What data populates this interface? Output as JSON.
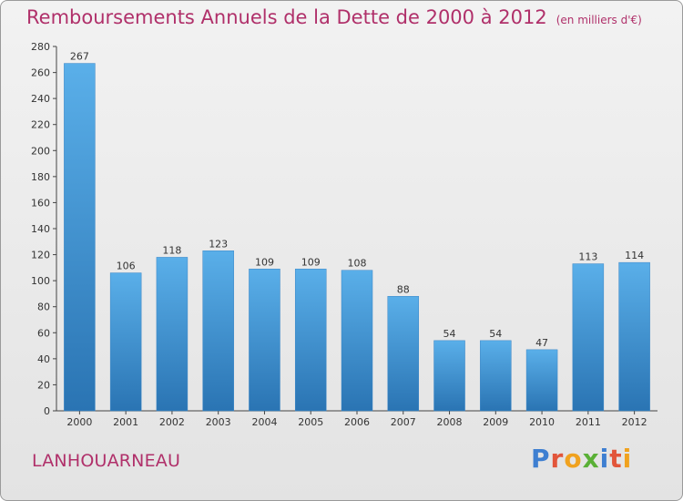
{
  "header": {
    "title": "Remboursements Annuels de la Dette de 2000 à 2012",
    "unit": "(en milliers d'€)"
  },
  "footer": {
    "town": "LANHOUARNEAU",
    "logo": "Proxiti"
  },
  "colors": {
    "title": "#b0306a",
    "bar_top": "#5aafe9",
    "bar_bottom": "#2a74b3",
    "logo_letters": [
      "#3e7fd1",
      "#e2553a",
      "#f0a21f",
      "#5ab036",
      "#3e7fd1",
      "#e2553a",
      "#f0a21f"
    ]
  },
  "chart_data": {
    "type": "bar",
    "title": "Remboursements Annuels de la Dette de 2000 à 2012",
    "subtitle": "(en milliers d'€)",
    "categories": [
      "2000",
      "2001",
      "2002",
      "2003",
      "2004",
      "2005",
      "2006",
      "2007",
      "2008",
      "2009",
      "2010",
      "2011",
      "2012"
    ],
    "values": [
      267,
      106,
      118,
      123,
      109,
      109,
      108,
      88,
      54,
      54,
      47,
      113,
      114
    ],
    "ylim": [
      0,
      280
    ],
    "yticks": [
      0,
      20,
      40,
      60,
      80,
      100,
      120,
      140,
      160,
      180,
      200,
      220,
      240,
      260,
      280
    ],
    "grid": false,
    "legend": "none"
  }
}
